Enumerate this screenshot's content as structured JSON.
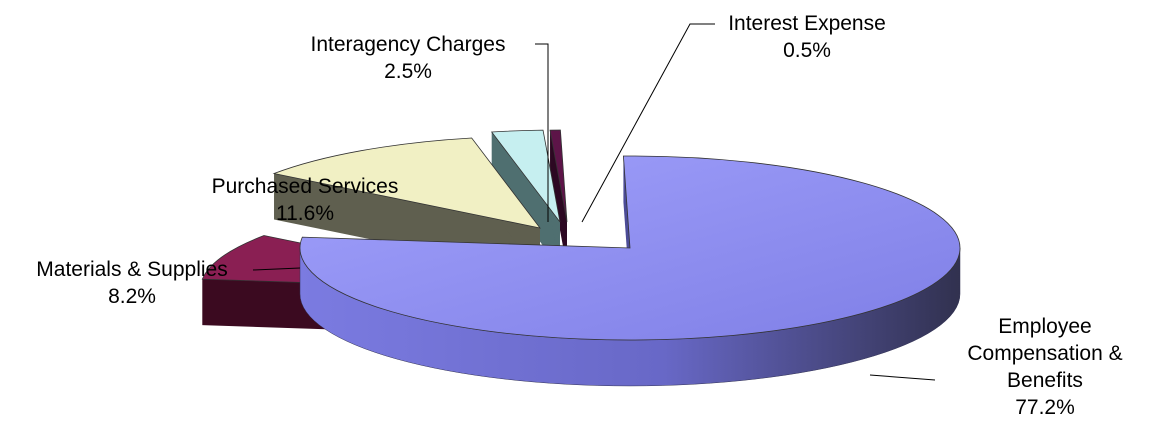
{
  "chart_data": {
    "type": "pie",
    "three_d": true,
    "exploded": true,
    "legend": "none",
    "slices": [
      {
        "key": "employee",
        "label_lines": [
          "Employee",
          "Compensation &",
          "Benefits"
        ],
        "pct_label": "77.2%",
        "value": 77.2,
        "top_color": "#8c8cf0",
        "side_color": "#4c4c97"
      },
      {
        "key": "materials",
        "label_lines": [
          "Materials & Supplies"
        ],
        "pct_label": "8.2%",
        "value": 8.2,
        "top_color": "#8a1f53",
        "side_color": "#3b0a20"
      },
      {
        "key": "purchased",
        "label_lines": [
          "Purchased Services"
        ],
        "pct_label": "11.6%",
        "value": 11.6,
        "top_color": "#f1f0c4",
        "side_color": "#5f5f4f"
      },
      {
        "key": "interagency",
        "label_lines": [
          "Interagency Charges"
        ],
        "pct_label": "2.5%",
        "value": 2.5,
        "top_color": "#c6eff0",
        "side_color": "#4f6f70"
      },
      {
        "key": "interest",
        "label_lines": [
          "Interest Expense"
        ],
        "pct_label": "0.5%",
        "value": 0.5,
        "top_color": "#5d1448",
        "side_color": "#2c0822"
      }
    ]
  }
}
